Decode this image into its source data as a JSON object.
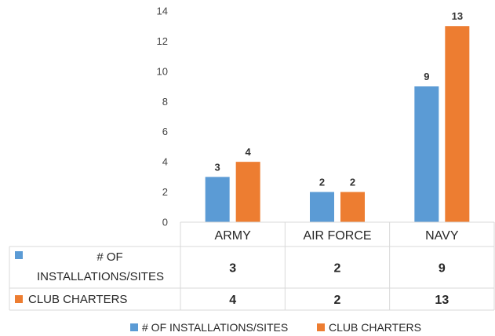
{
  "chart_data": {
    "type": "bar",
    "categories": [
      "ARMY",
      "AIR FORCE",
      "NAVY"
    ],
    "series": [
      {
        "name": "# OF INSTALLATIONS/SITES",
        "values": [
          3,
          2,
          9
        ],
        "color": "#5B9BD5"
      },
      {
        "name": "CLUB CHARTERS",
        "values": [
          4,
          2,
          13
        ],
        "color": "#ED7D31"
      }
    ],
    "ylim": [
      0,
      14
    ],
    "yticks": [
      0,
      2,
      4,
      6,
      8,
      10,
      12,
      14
    ],
    "grid": false,
    "data_table": true,
    "table_row_headers": [
      "# OF INSTALLATIONS/SITES",
      "CLUB CHARTERS"
    ],
    "legend_position": "bottom"
  }
}
